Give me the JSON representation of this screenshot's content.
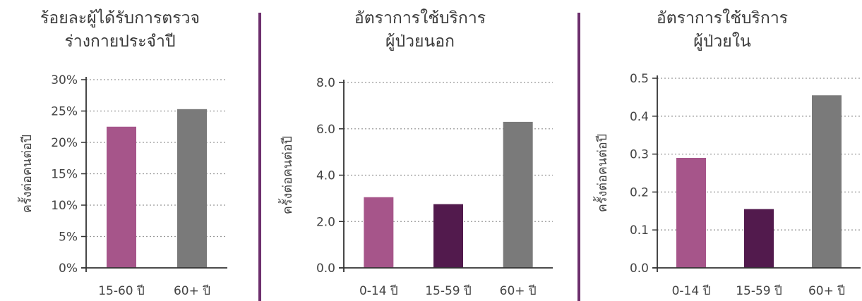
{
  "colors": {
    "bar_pink": "#a6558a",
    "bar_purple": "#521a4d",
    "bar_gray": "#7a7a7a",
    "divider": "#6d2f6d",
    "grid": "#999999",
    "axis": "#333333"
  },
  "chart_data": [
    {
      "type": "bar",
      "title_lines": [
        "ร้อยละผู้ได้รับการตรวจ",
        "ร่างกายประจำปี"
      ],
      "xlabel": "",
      "ylabel": "ครั้งต่อคนต่อปี",
      "categories": [
        "15-60 ปี",
        "60+ ปี"
      ],
      "values": [
        22.5,
        25.3
      ],
      "bar_colors": [
        "#a6558a",
        "#7a7a7a"
      ],
      "ylim": [
        0,
        30
      ],
      "yticks": [
        0,
        5,
        10,
        15,
        20,
        25,
        30
      ],
      "ytick_labels": [
        "0%",
        "5%",
        "10%",
        "15%",
        "20%",
        "25%",
        "30%"
      ],
      "grid": true
    },
    {
      "type": "bar",
      "title_lines": [
        "อัตราการใช้บริการ",
        "ผู้ป่วยนอก"
      ],
      "xlabel": "",
      "ylabel": "ครั้งต่อคนต่อปี",
      "categories": [
        "0-14 ปี",
        "15-59 ปี",
        "60+ ปี"
      ],
      "values": [
        3.05,
        2.75,
        6.3
      ],
      "bar_colors": [
        "#a6558a",
        "#521a4d",
        "#7a7a7a"
      ],
      "ylim": [
        0,
        8
      ],
      "yticks": [
        0,
        2,
        4,
        6,
        8
      ],
      "ytick_labels": [
        "0.0",
        "2.0",
        "4.0",
        "6.0",
        "8.0"
      ],
      "grid": true
    },
    {
      "type": "bar",
      "title_lines": [
        "อัตราการใช้บริการ",
        "ผู้ป่วยใน"
      ],
      "xlabel": "",
      "ylabel": "ครั้งต่อคนต่อปี",
      "categories": [
        "0-14 ปี",
        "15-59 ปี",
        "60+ ปี"
      ],
      "values": [
        0.29,
        0.155,
        0.455
      ],
      "bar_colors": [
        "#a6558a",
        "#521a4d",
        "#7a7a7a"
      ],
      "ylim": [
        0,
        0.5
      ],
      "yticks": [
        0,
        0.1,
        0.2,
        0.3,
        0.4,
        0.5
      ],
      "ytick_labels": [
        "0.0",
        "0.1",
        "0.2",
        "0.3",
        "0.4",
        "0.5"
      ],
      "grid": true
    }
  ]
}
